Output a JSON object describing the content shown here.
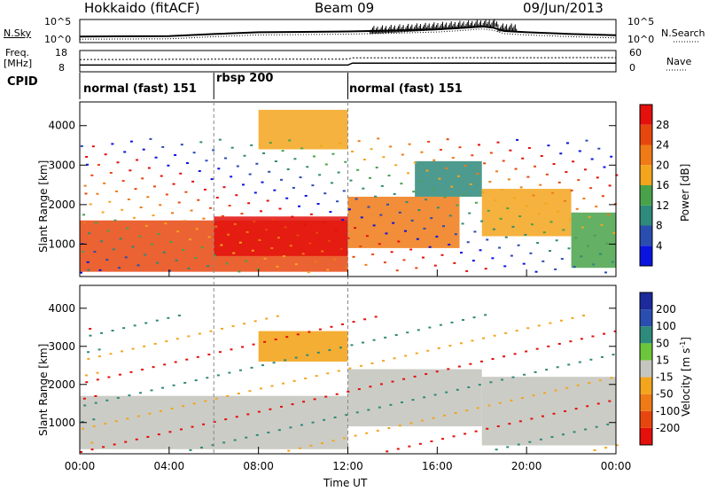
{
  "header": {
    "radar": "Hokkaido (fitACF)",
    "beam": "Beam 09",
    "date": "09/Jun/2013"
  },
  "strip_labels": {
    "nsky": "N.Sky",
    "nsky_ticks": [
      "10^5",
      "10^0"
    ],
    "nsearch": "N.Search",
    "nsearch_ticks": [
      "10^5",
      "10^0"
    ],
    "freq": "Freq.",
    "freq_unit": "[MHz]",
    "freq_ticks": [
      "18",
      "8"
    ],
    "nave": "Nave",
    "nave_ticks": [
      "60",
      "0"
    ],
    "cpid": "CPID"
  },
  "cpid_segments": [
    {
      "label": "normal (fast) 151",
      "start": "00:00",
      "end": "06:00"
    },
    {
      "label": "rbsp 200",
      "start": "06:00",
      "end": "12:00"
    },
    {
      "label": "normal (fast) 151",
      "start": "12:00",
      "end": "24:00"
    }
  ],
  "colors": {
    "power_scale": [
      "#0a14e0",
      "#2a4db0",
      "#2e8a7a",
      "#49a24a",
      "#f3a51d",
      "#f07a16",
      "#e8460f",
      "#e3100c"
    ],
    "velocity_scale": [
      "#e3100c",
      "#e8460f",
      "#f07a16",
      "#f3a51d",
      "#c6c6c0",
      "#6cc63a",
      "#2e8a7a",
      "#2a4db0",
      "#1c2a9c"
    ],
    "gray": "#c6c6c0"
  },
  "chart_data": [
    {
      "type": "line",
      "panel": "N.Sky / N.Search noise",
      "series": [
        {
          "name": "N.Sky",
          "x": [
            0,
            4,
            6,
            8,
            10,
            12,
            14,
            16,
            17,
            18,
            18.5,
            19,
            20,
            22,
            24
          ],
          "y": [
            1.2,
            1.3,
            1.8,
            2.2,
            2.3,
            2.4,
            2.6,
            2.9,
            3.2,
            3.6,
            3.3,
            2.5,
            2.2,
            1.8,
            1.5
          ]
        }
      ]
    },
    {
      "type": "line",
      "panel": "Freq / Nave",
      "series": [
        {
          "name": "Freq.",
          "x": [
            0,
            6,
            12,
            12.2,
            24
          ],
          "y": [
            11.0,
            11.0,
            11.0,
            12.0,
            12.0
          ]
        },
        {
          "name": "Nave",
          "x": [
            0,
            6,
            12,
            12.2,
            24
          ],
          "y": [
            35,
            36,
            36,
            40,
            41
          ]
        }
      ]
    },
    {
      "type": "heatmap",
      "panel": "Power",
      "xlabel": "",
      "ylabel": "Slant Range [km]",
      "xlim": [
        0,
        24
      ],
      "ylim": [
        180,
        4600
      ],
      "yticks": [
        "1000",
        "2000",
        "3000",
        "4000"
      ],
      "colorbar": {
        "label": "Power [dB]",
        "ticks": [
          "4",
          "8",
          "12",
          "16",
          "20",
          "24",
          "28"
        ],
        "range": [
          0,
          32
        ]
      },
      "regions": [
        {
          "x": [
            0,
            12
          ],
          "range": [
            300,
            1600
          ],
          "level": 24
        },
        {
          "x": [
            6,
            12
          ],
          "range": [
            700,
            1700
          ],
          "level": 28
        },
        {
          "x": [
            12,
            17
          ],
          "range": [
            900,
            2200
          ],
          "level": 20
        },
        {
          "x": [
            15,
            18
          ],
          "range": [
            2200,
            3100
          ],
          "level": 10
        },
        {
          "x": [
            18,
            22
          ],
          "range": [
            1200,
            2400
          ],
          "level": 18
        },
        {
          "x": [
            22,
            24
          ],
          "range": [
            400,
            1800
          ],
          "level": 14
        },
        {
          "x": [
            8,
            12
          ],
          "range": [
            3400,
            4400
          ],
          "level": 16
        }
      ]
    },
    {
      "type": "heatmap",
      "panel": "Velocity",
      "xlabel": "Time UT",
      "ylabel": "Slant Range [km]",
      "xlim": [
        0,
        24
      ],
      "ylim": [
        180,
        4600
      ],
      "xticks": [
        "00:00",
        "04:00",
        "08:00",
        "12:00",
        "16:00",
        "20:00",
        "00:00"
      ],
      "yticks": [
        "1000",
        "2000",
        "3000",
        "4000"
      ],
      "colorbar": {
        "label": "Velocity [m s^-1]",
        "ticks": [
          "200",
          "100",
          "50",
          "15",
          "-15",
          "-50",
          "-100",
          "-200"
        ]
      },
      "regions": [
        {
          "x": [
            0,
            12
          ],
          "range": [
            300,
            1700
          ],
          "velocity": 0
        },
        {
          "x": [
            12,
            18
          ],
          "range": [
            900,
            2400
          ],
          "velocity": 0
        },
        {
          "x": [
            18,
            24
          ],
          "range": [
            400,
            2200
          ],
          "velocity": 0
        },
        {
          "x": [
            8,
            12
          ],
          "range": [
            2600,
            3400
          ],
          "velocity": -30
        }
      ]
    }
  ],
  "axis_title_x": "Time UT",
  "ylabel": "Slant Range [km]",
  "power_label": "Power [dB]",
  "velocity_label": "Velocity [m s",
  "velocity_sup": "-1",
  "velocity_close": "]"
}
